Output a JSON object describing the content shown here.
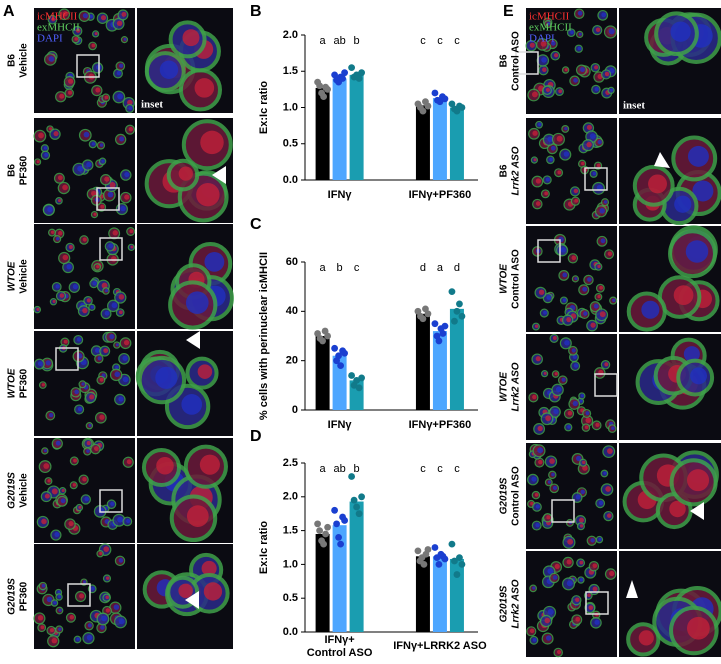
{
  "figure_a": {
    "label": "A",
    "legend": [
      "icMHCII",
      "exMHCII",
      "DAPI"
    ],
    "inset_label": "inset",
    "rows": [
      {
        "lines": [
          "B6",
          "Vehicle"
        ],
        "italic": [
          false,
          false
        ]
      },
      {
        "lines": [
          "B6",
          "PF360"
        ],
        "italic": [
          false,
          false
        ]
      },
      {
        "lines": [
          "WTOE",
          "Vehicle"
        ],
        "italic": [
          true,
          false
        ]
      },
      {
        "lines": [
          "WTOE",
          "PF360"
        ],
        "italic": [
          true,
          false
        ]
      },
      {
        "lines": [
          "G2019S",
          "Vehicle"
        ],
        "italic": [
          true,
          false
        ]
      },
      {
        "lines": [
          "G2019S",
          "PF360"
        ],
        "italic": [
          true,
          false
        ]
      }
    ]
  },
  "figure_e": {
    "label": "E",
    "legend": [
      "icMHCII",
      "exMHCII",
      "DAPI"
    ],
    "inset_label": "inset",
    "rows": [
      {
        "lines": [
          "B6",
          "Control ASO"
        ],
        "italic": [
          false,
          false
        ]
      },
      {
        "lines": [
          "B6",
          "Lrrk2 ASO"
        ],
        "italic": [
          false,
          true
        ]
      },
      {
        "lines": [
          "WTOE",
          "Control ASO"
        ],
        "italic": [
          true,
          false
        ]
      },
      {
        "lines": [
          "WTOE",
          "Lrrk2 ASO"
        ],
        "italic": [
          true,
          true
        ]
      },
      {
        "lines": [
          "G2019S",
          "Control ASO"
        ],
        "italic": [
          true,
          false
        ]
      },
      {
        "lines": [
          "G2019S",
          "Lrrk2 ASO"
        ],
        "italic": [
          true,
          true
        ]
      }
    ]
  },
  "chart_data": [
    {
      "type": "bar",
      "panel": "B",
      "ylabel": "Ex:Ic ratio",
      "categories": [
        [
          "IFNγ"
        ],
        [
          "IFNγ+PF360"
        ]
      ],
      "ylim": [
        0,
        2.0
      ],
      "yticks": [
        {
          "value": 0,
          "label": "0.0"
        },
        0.5,
        {
          "value": 1,
          "label": "1.0"
        },
        1.5,
        {
          "value": 2,
          "label": "2.0"
        }
      ],
      "series": [
        {
          "color": "#000000",
          "point_color": "#777777",
          "values": [
            1.27,
            1.03
          ],
          "letters": [
            "a",
            "c"
          ],
          "points": [
            [
              1.35,
              1.3,
              1.2,
              1.15,
              1.28,
              1.25
            ],
            [
              1.05,
              1.0,
              0.95,
              1.08,
              1.02
            ]
          ]
        },
        {
          "color": "#4da6ff",
          "point_color": "#1a3fd0",
          "values": [
            1.4,
            1.13
          ],
          "letters": [
            "ab",
            "c"
          ],
          "points": [
            [
              1.45,
              1.38,
              1.35,
              1.42,
              1.4,
              1.48
            ],
            [
              1.2,
              1.1,
              1.08,
              1.15,
              1.12
            ]
          ]
        },
        {
          "color": "#1a9db0",
          "point_color": "#117a8a",
          "values": [
            1.45,
            1.0
          ],
          "letters": [
            "b",
            "c"
          ],
          "points": [
            [
              1.55,
              1.42,
              1.45,
              1.4,
              1.48
            ],
            [
              1.05,
              0.98,
              0.95,
              1.02,
              1.0
            ]
          ]
        }
      ]
    },
    {
      "type": "bar",
      "panel": "C",
      "ylabel": "% cells with perinuclear icMHCII",
      "categories": [
        [
          "IFNγ"
        ],
        [
          "IFNγ+PF360"
        ]
      ],
      "ylim": [
        0,
        60
      ],
      "yticks": [
        0,
        20,
        40,
        60
      ],
      "series": [
        {
          "color": "#000000",
          "point_color": "#777777",
          "values": [
            30,
            39
          ],
          "letters": [
            "a",
            "d"
          ],
          "points": [
            [
              31,
              29,
              28,
              32,
              30
            ],
            [
              40,
              38,
              37,
              41,
              39
            ]
          ]
        },
        {
          "color": "#4da6ff",
          "point_color": "#1a3fd0",
          "values": [
            22,
            32
          ],
          "letters": [
            "b",
            "a"
          ],
          "points": [
            [
              25,
              20,
              22,
              18,
              24,
              23
            ],
            [
              35,
              30,
              28,
              33,
              31,
              34
            ]
          ]
        },
        {
          "color": "#1a9db0",
          "point_color": "#117a8a",
          "values": [
            12,
            41
          ],
          "letters": [
            "c",
            "d"
          ],
          "points": [
            [
              14,
              10,
              12,
              9,
              13
            ],
            [
              48,
              36,
              40,
              43,
              38
            ]
          ]
        }
      ]
    },
    {
      "type": "bar",
      "panel": "D",
      "ylabel": "Ex:Ic ratio",
      "categories": [
        [
          "IFNγ+",
          "Control ASO"
        ],
        [
          "IFNγ+LRRK2 ASO"
        ]
      ],
      "ylim": [
        0,
        2.5
      ],
      "yticks": [
        {
          "value": 0,
          "label": "0.0"
        },
        0.5,
        {
          "value": 1,
          "label": "1.0"
        },
        1.5,
        {
          "value": 2,
          "label": "2.0"
        },
        2.5
      ],
      "series": [
        {
          "color": "#000000",
          "point_color": "#777777",
          "values": [
            1.45,
            1.12
          ],
          "letters": [
            "a",
            "c"
          ],
          "points": [
            [
              1.6,
              1.5,
              1.35,
              1.3,
              1.45,
              1.55
            ],
            [
              1.2,
              1.05,
              1.1,
              1.0,
              1.15,
              1.22
            ]
          ]
        },
        {
          "color": "#4da6ff",
          "point_color": "#1a3fd0",
          "values": [
            1.58,
            1.12
          ],
          "letters": [
            "ab",
            "c"
          ],
          "points": [
            [
              1.8,
              1.6,
              1.4,
              1.3,
              1.7,
              1.65
            ],
            [
              1.25,
              1.1,
              1.0,
              1.15,
              1.12,
              1.08
            ]
          ]
        },
        {
          "color": "#1a9db0",
          "point_color": "#117a8a",
          "values": [
            1.93,
            1.08
          ],
          "letters": [
            "b",
            "c"
          ],
          "points": [
            [
              2.3,
              1.95,
              1.85,
              1.75,
              2.0
            ],
            [
              1.3,
              1.05,
              0.85,
              1.1,
              1.0
            ]
          ]
        }
      ]
    }
  ]
}
